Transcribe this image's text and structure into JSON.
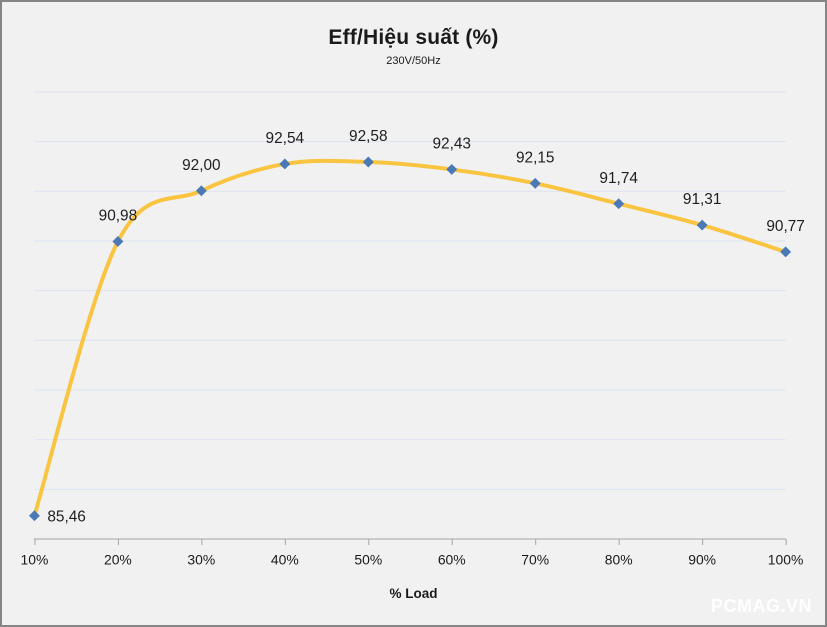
{
  "header": {
    "title": "Eff/Hiệu suất (%)",
    "subtitle": "230V/50Hz"
  },
  "watermark": {
    "text": "PCMAG.VN"
  },
  "chart_data": {
    "type": "line",
    "title": "Eff/Hiệu suất (%)",
    "subtitle": "230V/50Hz",
    "xlabel": "% Load",
    "ylabel": "",
    "categories": [
      "10%",
      "20%",
      "30%",
      "40%",
      "50%",
      "60%",
      "70%",
      "80%",
      "90%",
      "100%"
    ],
    "values": [
      85.46,
      90.98,
      92.0,
      92.54,
      92.58,
      92.43,
      92.15,
      91.74,
      91.31,
      90.77
    ],
    "point_labels": [
      "85,46",
      "90,98",
      "92,00",
      "92,54",
      "92,58",
      "92,43",
      "92,15",
      "91,74",
      "91,31",
      "90,77"
    ],
    "ylim": [
      85,
      94
    ],
    "gridline_step": 1,
    "grid": true,
    "legend_position": "none",
    "smoothed": true,
    "marker_shape": "diamond",
    "colors": {
      "line": "#F9C440",
      "marker": "#4B79B5",
      "gridline": "#DCE3F0",
      "axis": "#A3A3A3",
      "tick_label": "#1a1a1a",
      "data_label": "#1f1f1f",
      "background": "#F1F1F2",
      "border": "#858585",
      "watermark": "#FFFFFF"
    }
  }
}
